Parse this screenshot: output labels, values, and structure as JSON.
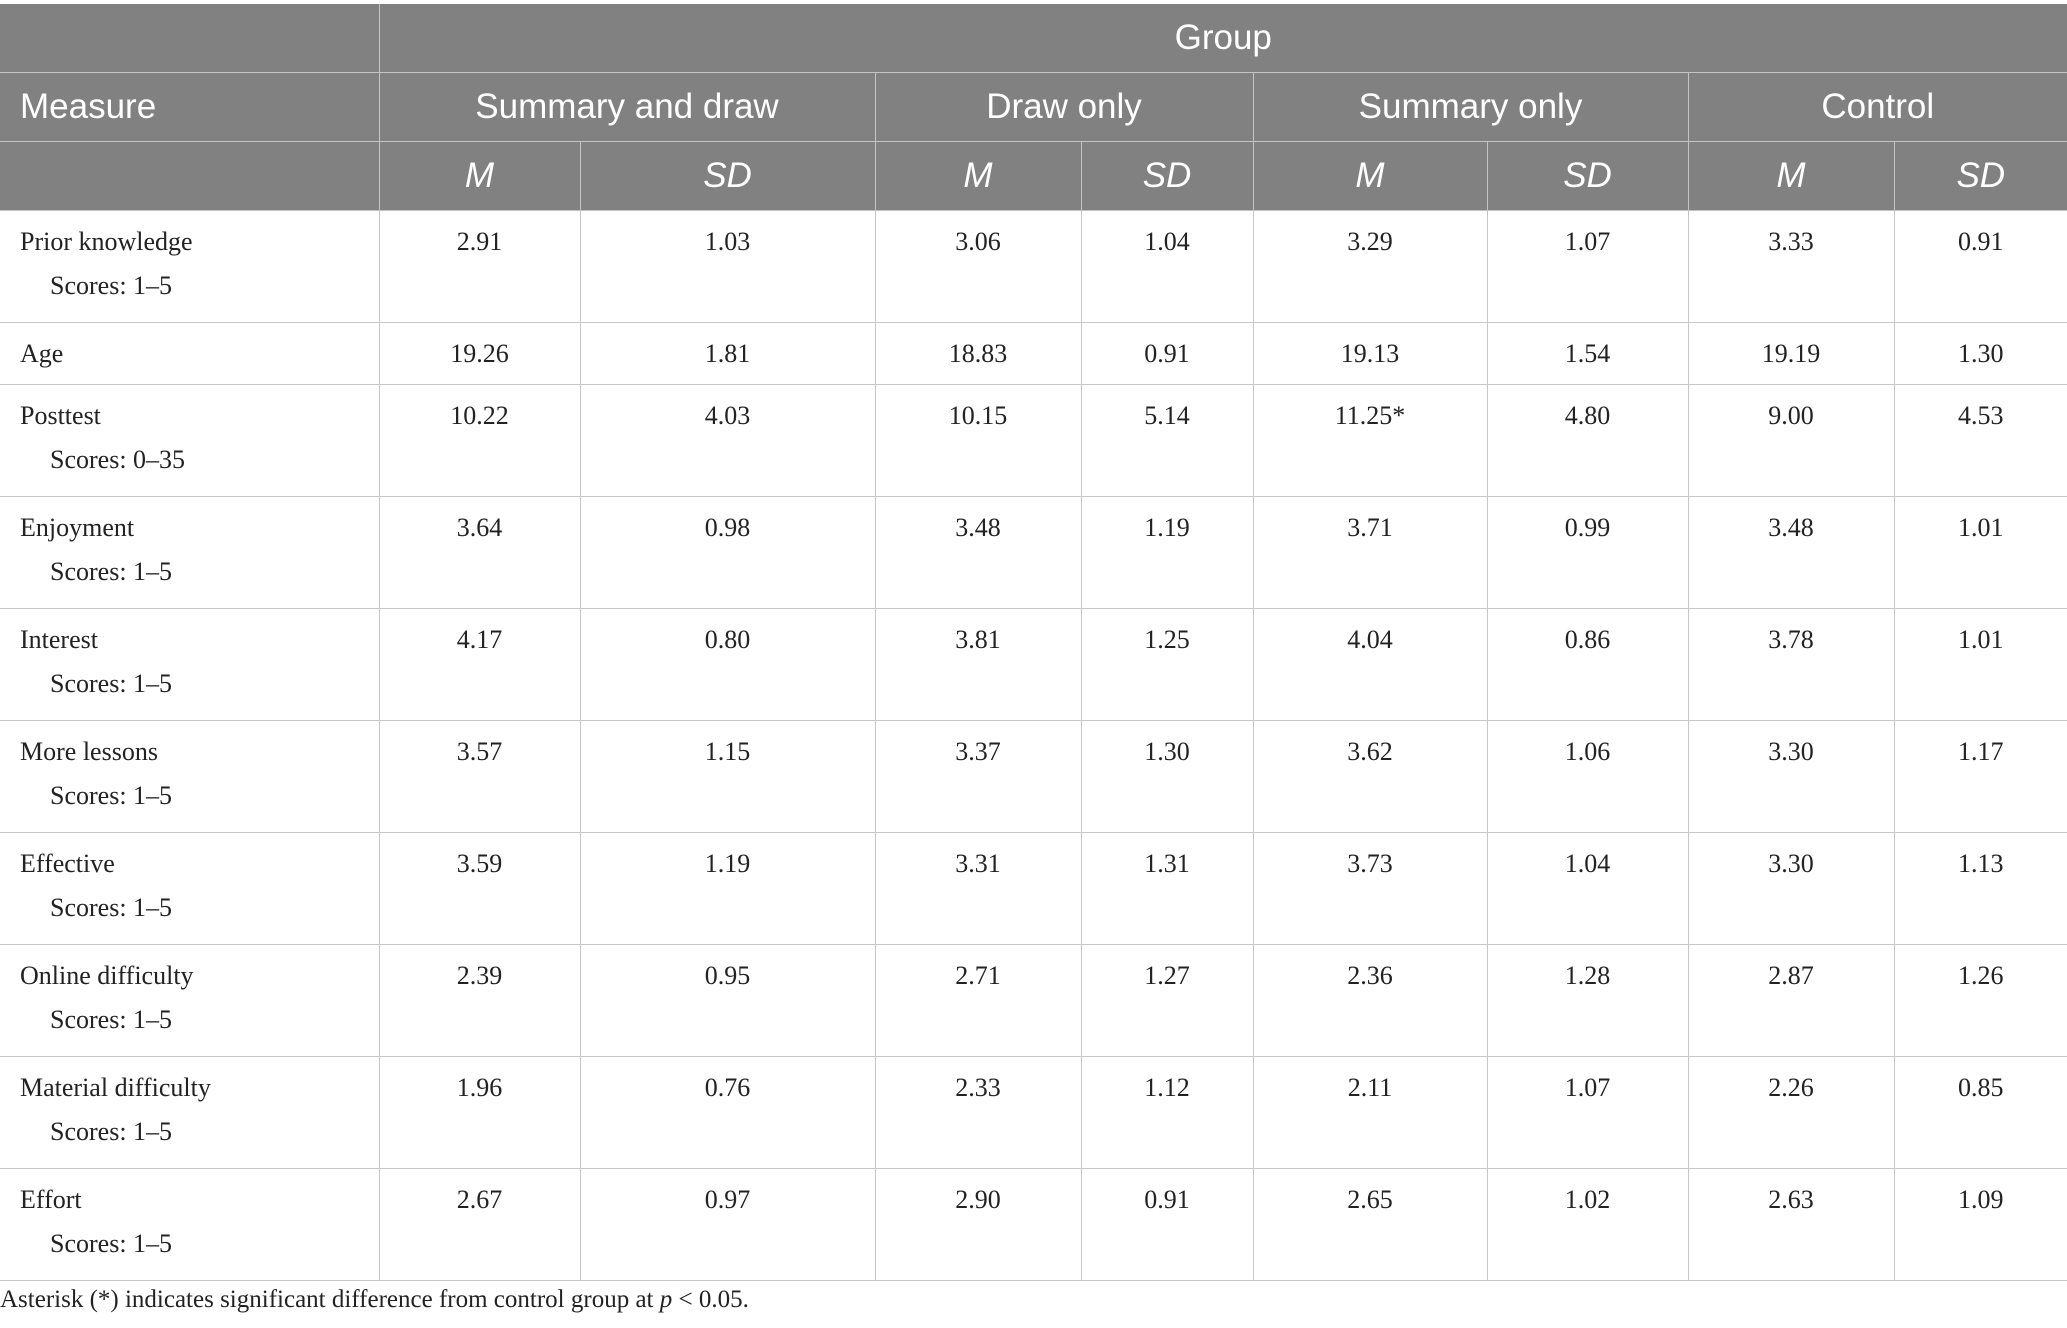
{
  "header": {
    "group": "Group",
    "measure": "Measure",
    "groups": [
      "Summary and draw",
      "Draw only",
      "Summary only",
      "Control"
    ],
    "m": "M",
    "sd": "SD"
  },
  "rows": [
    {
      "measure": "Prior knowledge",
      "scores": "Scores: 1–5",
      "vals": [
        "2.91",
        "1.03",
        "3.06",
        "1.04",
        "3.29",
        "1.07",
        "3.33",
        "0.91"
      ]
    },
    {
      "measure": "Age",
      "scores": "",
      "vals": [
        "19.26",
        "1.81",
        "18.83",
        "0.91",
        "19.13",
        "1.54",
        "19.19",
        "1.30"
      ]
    },
    {
      "measure": "Posttest",
      "scores": "Scores: 0–35",
      "vals": [
        "10.22",
        "4.03",
        "10.15",
        "5.14",
        "11.25*",
        "4.80",
        "9.00",
        "4.53"
      ]
    },
    {
      "measure": "Enjoyment",
      "scores": "Scores: 1–5",
      "vals": [
        "3.64",
        "0.98",
        "3.48",
        "1.19",
        "3.71",
        "0.99",
        "3.48",
        "1.01"
      ]
    },
    {
      "measure": "Interest",
      "scores": "Scores: 1–5",
      "vals": [
        "4.17",
        "0.80",
        "3.81",
        "1.25",
        "4.04",
        "0.86",
        "3.78",
        "1.01"
      ]
    },
    {
      "measure": "More lessons",
      "scores": "Scores: 1–5",
      "vals": [
        "3.57",
        "1.15",
        "3.37",
        "1.30",
        "3.62",
        "1.06",
        "3.30",
        "1.17"
      ]
    },
    {
      "measure": "Effective",
      "scores": "Scores: 1–5",
      "vals": [
        "3.59",
        "1.19",
        "3.31",
        "1.31",
        "3.73",
        "1.04",
        "3.30",
        "1.13"
      ]
    },
    {
      "measure": "Online difficulty",
      "scores": "Scores: 1–5",
      "vals": [
        "2.39",
        "0.95",
        "2.71",
        "1.27",
        "2.36",
        "1.28",
        "2.87",
        "1.26"
      ]
    },
    {
      "measure": "Material difficulty",
      "scores": "Scores: 1–5",
      "vals": [
        "1.96",
        "0.76",
        "2.33",
        "1.12",
        "2.11",
        "1.07",
        "2.26",
        "0.85"
      ]
    },
    {
      "measure": "Effort",
      "scores": "Scores: 1–5",
      "vals": [
        "2.67",
        "0.97",
        "2.90",
        "0.91",
        "2.65",
        "1.02",
        "2.63",
        "1.09"
      ]
    }
  ],
  "footnote": {
    "text": "Asterisk (*) indicates significant difference from control group at ",
    "p": "p",
    "rest": " < 0.05."
  },
  "colors": {
    "header_bg": "#808180",
    "header_text": "#ffffff",
    "rule": "#c8c8c8"
  }
}
